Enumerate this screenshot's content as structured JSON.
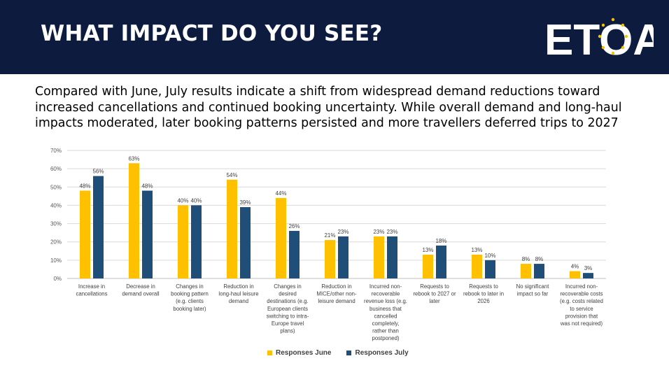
{
  "header": {
    "title": "WHAT IMPACT DO YOU SEE?",
    "logo_text": "ETOA",
    "background": "#0d1b3e"
  },
  "subtitle": "Compared with June, July results indicate a shift from widespread demand reductions toward increased cancellations and continued booking uncertainty. While overall demand and long-haul impacts moderated, later booking patterns persisted and more travellers deferred trips to 2027",
  "chart_data": {
    "type": "bar",
    "categories": [
      [
        "Increase in",
        "cancellations"
      ],
      [
        "Decrease in",
        "demand overall"
      ],
      [
        "Changes in",
        "booking pattern",
        "(e.g. clients",
        "booking later)"
      ],
      [
        "Reduction in",
        "long-haul leisure",
        "demand"
      ],
      [
        "Changes in",
        "desired",
        "destinations (e.g.",
        "European clients",
        "switching to intra-",
        "Europe travel",
        "plans)"
      ],
      [
        "Reduction in",
        "MICE/other non-",
        "leisure demand"
      ],
      [
        "Incurred non-",
        "recoverable",
        "revenue loss (e.g.",
        "business that",
        "cancelled",
        "completely,",
        "rather than",
        "postponed)"
      ],
      [
        "Requests to",
        "rebook to 2027 or",
        "later"
      ],
      [
        "Requests to",
        "rebook to later in",
        "2026"
      ],
      [
        "No significant",
        "impact so far"
      ],
      [
        "Incurred non-",
        "recoverable costs",
        "(e.g. costs related",
        "to service",
        "provision that",
        "was not required)"
      ]
    ],
    "series": [
      {
        "name": "Responses June",
        "color": "#ffc000",
        "values": [
          48,
          63,
          40,
          54,
          44,
          21,
          23,
          13,
          13,
          8,
          4
        ]
      },
      {
        "name": "Responses July",
        "color": "#1f4e79",
        "values": [
          56,
          48,
          40,
          39,
          26,
          23,
          23,
          18,
          10,
          8,
          3
        ]
      }
    ],
    "yticks": [
      "0%",
      "10%",
      "20%",
      "30%",
      "40%",
      "50%",
      "60%",
      "70%"
    ],
    "ylim": [
      0,
      70
    ],
    "value_suffix": "%",
    "grid": true,
    "legend_position": "bottom"
  }
}
